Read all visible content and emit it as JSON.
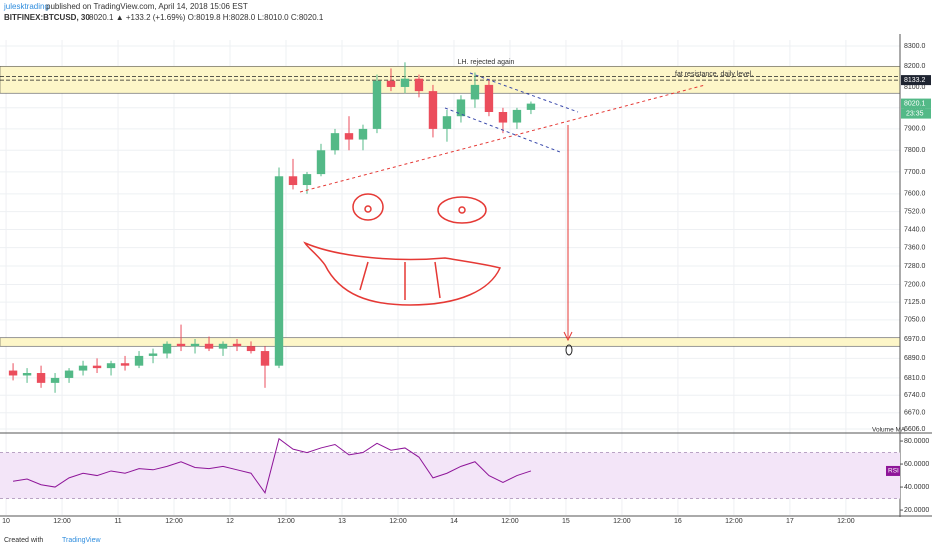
{
  "chart_data": {
    "type": "candlestick",
    "author": "julesktrading",
    "subtitle": "published on TradingView.com, April 14, 2018 15:06 EST",
    "title": "BITFINEX:BTCUSD, 30",
    "summary": "8020.1 ▲ +133.2 (+1.69%) O:8019.8 H:8028.0 L:8010.0 C:8020.1",
    "annotations": [
      "LH. rejected again",
      "fat resistance, daily level."
    ],
    "volume_label": "Volume MA",
    "footer": [
      "Created with",
      "TradingView"
    ],
    "log_scale": true,
    "up_color": "#53b987",
    "down_color": "#eb4d5c",
    "x": [
      0,
      3,
      6,
      9,
      12,
      15,
      18,
      21,
      24,
      27,
      30,
      33,
      36,
      39,
      42,
      45,
      48,
      51,
      54,
      57,
      60,
      63,
      66,
      69,
      72,
      75,
      78,
      81,
      84,
      87,
      90,
      93,
      96,
      99,
      102,
      105,
      108,
      111
    ],
    "open": [
      6840,
      6820,
      6830,
      6790,
      6810,
      6840,
      6860,
      6850,
      6870,
      6860,
      6900,
      6910,
      6950,
      6940,
      6950,
      6930,
      6950,
      6940,
      6920,
      6860,
      7680,
      7640,
      7690,
      7800,
      7880,
      7850,
      7900,
      8130,
      8100,
      8140,
      8080,
      7900,
      7960,
      8040,
      8110,
      7980,
      7930,
      7990
    ],
    "high": [
      6870,
      6850,
      6860,
      6830,
      6850,
      6880,
      6890,
      6880,
      6900,
      6920,
      6930,
      6960,
      7030,
      6970,
      6980,
      6960,
      6970,
      6960,
      6940,
      7720,
      7760,
      7700,
      7830,
      7900,
      7960,
      7920,
      8160,
      8190,
      8220,
      8160,
      8110,
      7990,
      8060,
      8170,
      8140,
      8000,
      8000,
      8030
    ],
    "low": [
      6800,
      6790,
      6770,
      6750,
      6790,
      6820,
      6830,
      6820,
      6840,
      6850,
      6870,
      6890,
      6920,
      6910,
      6920,
      6900,
      6920,
      6910,
      6770,
      6850,
      7620,
      7600,
      7680,
      7780,
      7800,
      7800,
      7880,
      8080,
      8070,
      8050,
      7860,
      7840,
      7930,
      8000,
      7960,
      7880,
      7900,
      7970
    ],
    "close": [
      6820,
      6830,
      6790,
      6810,
      6840,
      6860,
      6850,
      6870,
      6860,
      6900,
      6910,
      6950,
      6940,
      6950,
      6930,
      6950,
      6940,
      6920,
      6860,
      7680,
      7640,
      7690,
      7800,
      7880,
      7850,
      7900,
      8130,
      8100,
      8140,
      8080,
      7900,
      7960,
      8040,
      8110,
      7980,
      7930,
      7990,
      8020
    ],
    "xlim": [
      -1.3,
      191.6
    ],
    "xticks": [
      {
        "value": 0,
        "label": "10"
      },
      {
        "value": 12,
        "label": "12:00"
      },
      {
        "value": 24,
        "label": "11"
      },
      {
        "value": 36,
        "label": "12:00"
      },
      {
        "value": 48,
        "label": "12"
      },
      {
        "value": 60,
        "label": "12:00"
      },
      {
        "value": 72,
        "label": "13"
      },
      {
        "value": 84,
        "label": "12:00"
      },
      {
        "value": 96,
        "label": "14"
      },
      {
        "value": 108,
        "label": "12:00"
      },
      {
        "value": 120,
        "label": "15"
      },
      {
        "value": 132,
        "label": "12:00"
      },
      {
        "value": 144,
        "label": "16"
      },
      {
        "value": 156,
        "label": "12:00"
      },
      {
        "value": 168,
        "label": "17"
      },
      {
        "value": 180,
        "label": "12:00"
      }
    ],
    "ylim": [
      6594,
      8330
    ],
    "yticks": [
      {
        "value": 8300,
        "label": "8300.0"
      },
      {
        "value": 8200,
        "label": "8200.0"
      },
      {
        "value": 8100,
        "label": "8100.0"
      },
      {
        "value": 8000,
        "label": "8000.0"
      },
      {
        "value": 7900,
        "label": "7900.0"
      },
      {
        "value": 7800,
        "label": "7800.0"
      },
      {
        "value": 7700,
        "label": "7700.0"
      },
      {
        "value": 7600,
        "label": "7600.0"
      },
      {
        "value": 7520,
        "label": "7520.0"
      },
      {
        "value": 7440,
        "label": "7440.0"
      },
      {
        "value": 7360,
        "label": "7360.0"
      },
      {
        "value": 7280,
        "label": "7280.0"
      },
      {
        "value": 7200,
        "label": "7200.0"
      },
      {
        "value": 7125,
        "label": "7125.0"
      },
      {
        "value": 7050,
        "label": "7050.0"
      },
      {
        "value": 6970,
        "label": "6970.0"
      },
      {
        "value": 6890,
        "label": "6890.0"
      },
      {
        "value": 6810,
        "label": "6810.0"
      },
      {
        "value": 6740,
        "label": "6740.0"
      },
      {
        "value": 6670,
        "label": "6670.0"
      },
      {
        "value": 6606,
        "label": "6606.0"
      }
    ],
    "grid": true,
    "zones": [
      {
        "range": [
          8070,
          8200
        ],
        "color": "#fdf6c8"
      },
      {
        "range": [
          6940,
          6975
        ],
        "color": "#fdf6c8"
      }
    ],
    "levels": [
      8150,
      8133.2
    ],
    "price_labels": [
      {
        "value": 8133.2,
        "color": "#1e2431"
      },
      {
        "value": 8020.1,
        "color": "#53b987"
      }
    ],
    "countdown": "23:35",
    "rsi": {
      "name": "RSI",
      "color": "#8e1599",
      "values": [
        45,
        47,
        42,
        40,
        48,
        52,
        50,
        54,
        52,
        56,
        55,
        58,
        62,
        57,
        56,
        58,
        55,
        52,
        35,
        82,
        73,
        70,
        74,
        77,
        68,
        70,
        78,
        72,
        74,
        66,
        48,
        52,
        58,
        62,
        50,
        44,
        50,
        54
      ],
      "ylim": [
        15.7,
        87
      ],
      "yticks": [
        {
          "value": 80,
          "label": "80.0000"
        },
        {
          "value": 60,
          "label": "60.0000"
        },
        {
          "value": 40,
          "label": "40.0000"
        },
        {
          "value": 20,
          "label": "20.0000"
        }
      ],
      "band": [
        30,
        70
      ]
    }
  }
}
